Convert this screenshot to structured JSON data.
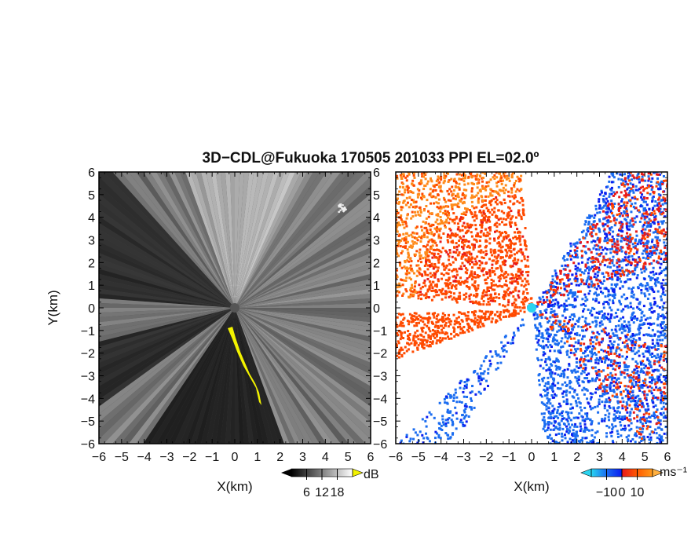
{
  "figure": {
    "title": "3D−CDL@Fukuoka 170505 201033 PPI EL=02.0º"
  },
  "chart_data": [
    {
      "type": "heatmap",
      "name": "reflectivity-ppi",
      "xlabel": "X(km)",
      "ylabel": "Y(km)",
      "xlim": [
        -6,
        6
      ],
      "ylim": [
        -6,
        6
      ],
      "xticks": [
        "−6",
        "−5",
        "−4",
        "−3",
        "−2",
        "−1",
        "0",
        "1",
        "2",
        "3",
        "4",
        "5",
        "6"
      ],
      "yticks": [
        "−6",
        "−5",
        "−4",
        "−3",
        "−2",
        "−1",
        "0",
        "1",
        "2",
        "3",
        "4",
        "5",
        "6"
      ],
      "colorbar": {
        "unit": "dB",
        "ticks": [
          "6",
          "12",
          "18"
        ],
        "tick_values": [
          6,
          12,
          18
        ],
        "range": [
          0,
          24
        ],
        "colormap": [
          "#000000",
          "#ffffff"
        ]
      },
      "highlight_color": "#f2f200"
    },
    {
      "type": "heatmap",
      "name": "doppler-velocity-ppi",
      "xlabel": "X(km)",
      "ylabel": "",
      "xlim": [
        -6,
        6
      ],
      "ylim": [
        -6,
        6
      ],
      "xticks": [
        "−6",
        "−5",
        "−4",
        "−3",
        "−2",
        "−1",
        "0",
        "1",
        "2",
        "3",
        "4",
        "5",
        "6"
      ],
      "yticks": [
        "−6",
        "−5",
        "−4",
        "−3",
        "−2",
        "−1",
        "0",
        "1",
        "2",
        "3",
        "4",
        "5",
        "6"
      ],
      "colorbar": {
        "unit": "ms⁻¹",
        "ticks": [
          "−10",
          "0",
          "10"
        ],
        "tick_values": [
          -10,
          0,
          10
        ],
        "range": [
          -20,
          20
        ],
        "colormap": [
          "#2ad4f0",
          "#1a6cf0",
          "#0a1ef0",
          "#e81a1a",
          "#ff5a00",
          "#ff9a1a"
        ]
      }
    }
  ]
}
